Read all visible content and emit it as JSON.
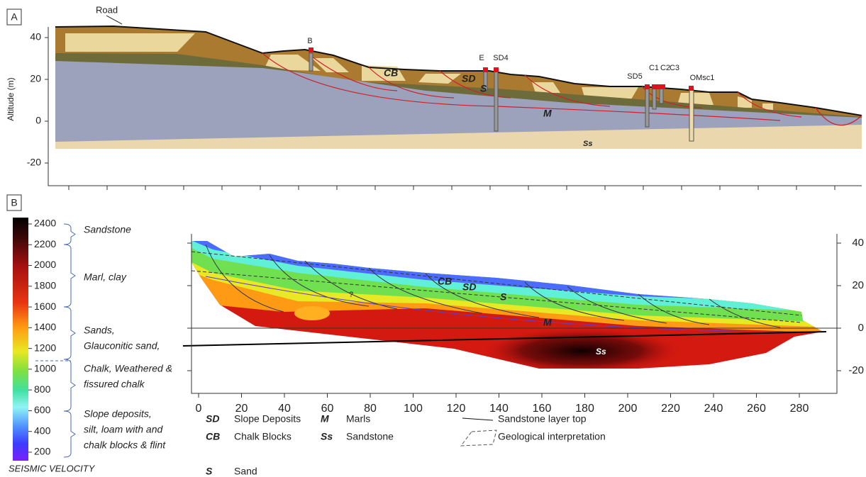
{
  "panel_a": {
    "label": "A",
    "y_axis_label": "Altitude (m)",
    "y_ticks": [
      40,
      20,
      0,
      -20
    ],
    "road": "Road",
    "boreholes": [
      "B",
      "E",
      "SD4",
      "SD5",
      "C1",
      "C2",
      "C3",
      "OMsc1"
    ],
    "units": [
      "CB",
      "SD",
      "S",
      "M",
      "Ss"
    ]
  },
  "panel_b": {
    "label": "B",
    "colorbar": {
      "title": "SEISMIC VELOCITY",
      "ticks": [
        2400,
        2200,
        2000,
        1800,
        1600,
        1400,
        1200,
        1000,
        800,
        600,
        400,
        200
      ],
      "classes": [
        [
          "Sandstone"
        ],
        [
          "Marl, clay"
        ],
        [
          "Sands,",
          "Glauconitic sand,"
        ],
        [
          "Chalk, Weathered &",
          "fissured chalk"
        ],
        [
          "Slope deposits,",
          "silt, loam with and",
          "chalk blocks & flint"
        ]
      ]
    },
    "x_ticks": [
      0,
      20,
      40,
      60,
      80,
      100,
      120,
      140,
      160,
      180,
      200,
      220,
      240,
      260,
      280
    ],
    "y_ticks": [
      40,
      20,
      0,
      -20
    ],
    "units": [
      "CB",
      "SD",
      "S",
      "M",
      "Ss",
      "?"
    ]
  },
  "legend": {
    "units": [
      {
        "abbr": "SD",
        "name": "Slope Deposits"
      },
      {
        "abbr": "M",
        "name": "Marls"
      },
      {
        "abbr": "CB",
        "name": "Chalk Blocks"
      },
      {
        "abbr": "Ss",
        "name": "Sandstone"
      },
      {
        "abbr": "S",
        "name": "Sand"
      }
    ],
    "lines": [
      "Sandstone layer top",
      "Geological interpretation"
    ]
  }
}
